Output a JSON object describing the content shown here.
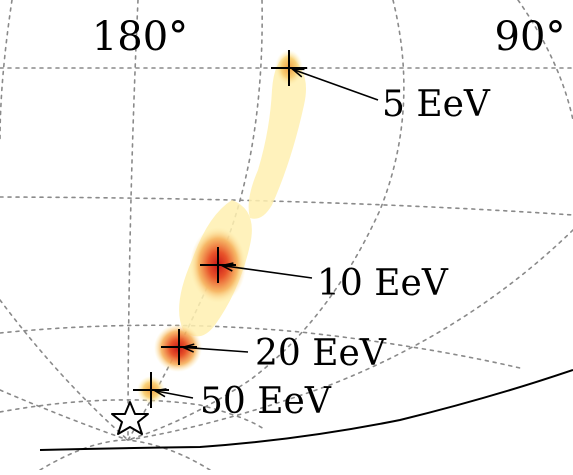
{
  "chart_data": {
    "type": "scatter",
    "projection": "sky-map",
    "grid": true,
    "longitude_labels": [
      "180°",
      "90°"
    ],
    "points": [
      {
        "label": "5 EeV"
      },
      {
        "label": "10 EeV"
      },
      {
        "label": "20 EeV"
      },
      {
        "label": "50 EeV"
      }
    ],
    "marker_source": "star",
    "colors": {
      "density_low": "#fff3b8",
      "density_mid": "#f6b25e",
      "density_high": "#d62828",
      "marker": "#000000"
    }
  }
}
